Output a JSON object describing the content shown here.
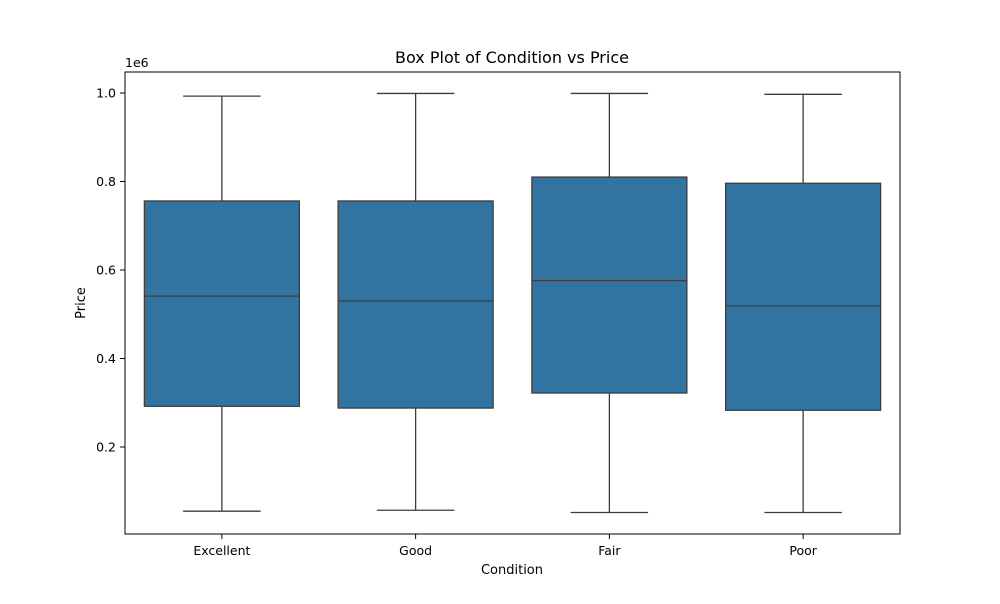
{
  "chart_data": {
    "type": "box",
    "title": "Box Plot of Condition vs Price",
    "xlabel": "Condition",
    "ylabel": "Price",
    "y_offset_label": "1e6",
    "y_scale_factor": 1000000,
    "ylim": [
      0,
      1050000
    ],
    "yticks": [
      200000,
      400000,
      600000,
      800000,
      1000000
    ],
    "ytick_labels": [
      "0.2",
      "0.4",
      "0.6",
      "0.8",
      "1.0"
    ],
    "grid": false,
    "box_color": "#3274a1",
    "line_color": "#3d3d3d",
    "categories": [
      "Excellent",
      "Good",
      "Fair",
      "Poor"
    ],
    "boxes": [
      {
        "category": "Excellent",
        "whisker_low": 55000,
        "q1": 292000,
        "median": 541000,
        "q3": 756000,
        "whisker_high": 993000
      },
      {
        "category": "Good",
        "whisker_low": 57000,
        "q1": 288000,
        "median": 530000,
        "q3": 756000,
        "whisker_high": 999000
      },
      {
        "category": "Fair",
        "whisker_low": 52000,
        "q1": 322000,
        "median": 576000,
        "q3": 810000,
        "whisker_high": 999000
      },
      {
        "category": "Poor",
        "whisker_low": 52000,
        "q1": 283000,
        "median": 519000,
        "q3": 796000,
        "whisker_high": 997000
      }
    ]
  }
}
